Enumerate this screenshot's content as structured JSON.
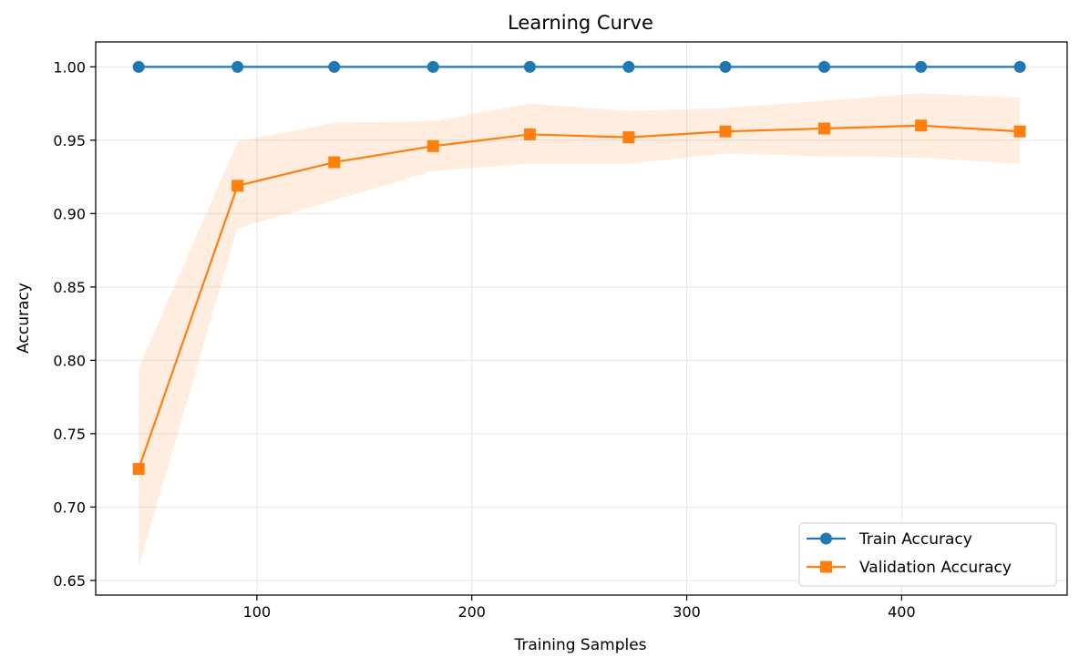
{
  "chart_data": {
    "type": "line",
    "title": "Learning Curve",
    "xlabel": "Training Samples",
    "ylabel": "Accuracy",
    "xlim": [
      25,
      477
    ],
    "ylim": [
      0.64,
      1.017
    ],
    "x_ticks": [
      100,
      200,
      300,
      400
    ],
    "x_tick_labels": [
      "100",
      "200",
      "300",
      "400"
    ],
    "y_ticks": [
      0.65,
      0.7,
      0.75,
      0.8,
      0.85,
      0.9,
      0.95,
      1.0
    ],
    "y_tick_labels": [
      "0.65",
      "0.70",
      "0.75",
      "0.80",
      "0.85",
      "0.90",
      "0.95",
      "1.00"
    ],
    "grid": true,
    "legend_position": "bottom-right",
    "x": [
      45,
      91,
      136,
      182,
      227,
      273,
      318,
      364,
      409,
      455
    ],
    "series": [
      {
        "name": "Train Accuracy",
        "color": "#1f77b4",
        "marker": "circle",
        "values": [
          1.0,
          1.0,
          1.0,
          1.0,
          1.0,
          1.0,
          1.0,
          1.0,
          1.0,
          1.0
        ]
      },
      {
        "name": "Validation Accuracy",
        "color": "#ff7f0e",
        "marker": "square",
        "values": [
          0.726,
          0.919,
          0.935,
          0.946,
          0.954,
          0.952,
          0.956,
          0.958,
          0.96,
          0.956
        ],
        "band_lower": [
          0.659,
          0.89,
          0.909,
          0.929,
          0.934,
          0.934,
          0.941,
          0.939,
          0.938,
          0.934
        ],
        "band_upper": [
          0.795,
          0.949,
          0.962,
          0.963,
          0.975,
          0.97,
          0.972,
          0.977,
          0.982,
          0.979
        ]
      }
    ]
  }
}
